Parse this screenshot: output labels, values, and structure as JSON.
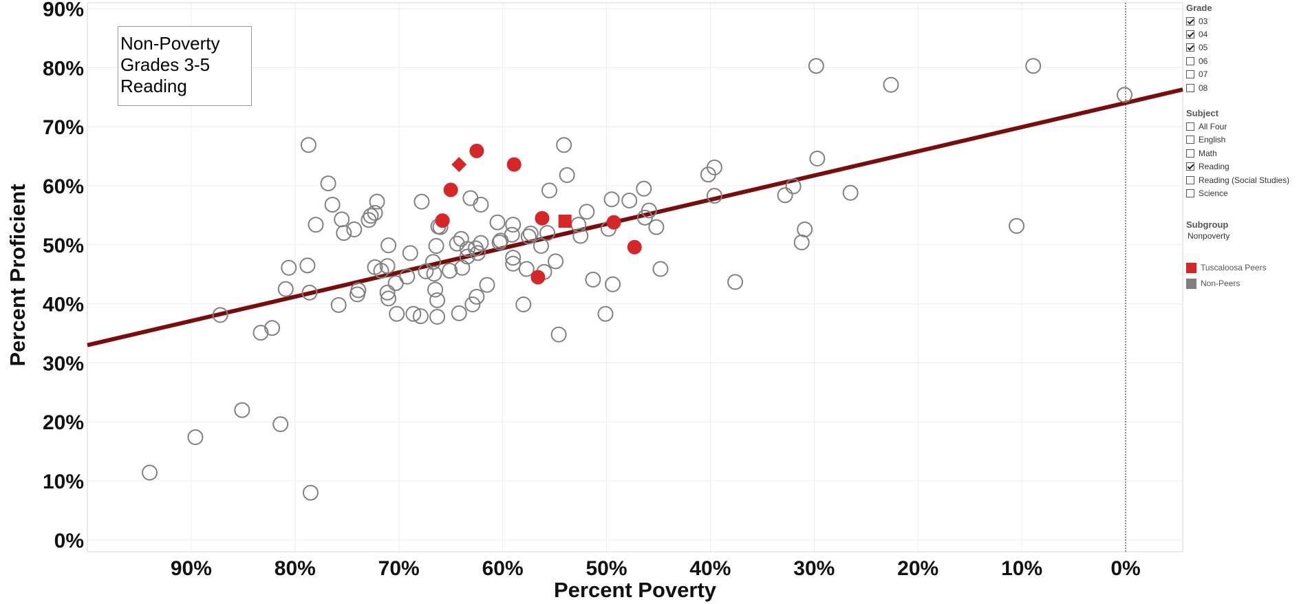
{
  "filters": {
    "grade": {
      "title": "Grade",
      "options": [
        {
          "label": "03",
          "checked": true
        },
        {
          "label": "04",
          "checked": true
        },
        {
          "label": "05",
          "checked": true
        },
        {
          "label": "06",
          "checked": false
        },
        {
          "label": "07",
          "checked": false
        },
        {
          "label": "08",
          "checked": false
        }
      ]
    },
    "subject": {
      "title": "Subject",
      "options": [
        {
          "label": "All Four",
          "checked": false
        },
        {
          "label": "English",
          "checked": false
        },
        {
          "label": "Math",
          "checked": false
        },
        {
          "label": "Reading",
          "checked": true
        },
        {
          "label": "Reading (Social Studies)",
          "checked": false
        },
        {
          "label": "Science",
          "checked": false
        }
      ]
    },
    "subgroup": {
      "title": "Subgroup",
      "value": "Nonpoverty"
    }
  },
  "legend": [
    {
      "label": "Tuscaloosa Peers",
      "color": "#d62728"
    },
    {
      "label": "Non-Peers",
      "color": "#808080"
    }
  ],
  "annotation": {
    "lines": [
      "Non-Poverty",
      "Grades 3-5",
      "Reading"
    ]
  },
  "chart_data": {
    "type": "scatter",
    "xlabel": "Percent Poverty",
    "ylabel": "Percent Proficient",
    "x_reversed": true,
    "xlim": [
      100,
      -5.5
    ],
    "ylim": [
      -2,
      91
    ],
    "x_ticks": [
      {
        "value": 90,
        "label": "90%"
      },
      {
        "value": 80,
        "label": "80%"
      },
      {
        "value": 70,
        "label": "70%"
      },
      {
        "value": 60,
        "label": "60%"
      },
      {
        "value": 50,
        "label": "50%"
      },
      {
        "value": 40,
        "label": "40%"
      },
      {
        "value": 30,
        "label": "30%"
      },
      {
        "value": 20,
        "label": "20%"
      },
      {
        "value": 10,
        "label": "10%"
      },
      {
        "value": 0,
        "label": "0%"
      }
    ],
    "y_ticks": [
      {
        "value": 0,
        "label": "0%"
      },
      {
        "value": 10,
        "label": "10%"
      },
      {
        "value": 20,
        "label": "20%"
      },
      {
        "value": 30,
        "label": "30%"
      },
      {
        "value": 40,
        "label": "40%"
      },
      {
        "value": 50,
        "label": "50%"
      },
      {
        "value": 60,
        "label": "60%"
      },
      {
        "value": 70,
        "label": "70%"
      },
      {
        "value": 80,
        "label": "80%"
      },
      {
        "value": 90,
        "label": "90%"
      }
    ],
    "grid": true,
    "reference_line_x": 0,
    "trend_line": {
      "color": "#7b0c0c",
      "points": [
        [
          100,
          33
        ],
        [
          -5.5,
          76.3
        ]
      ]
    },
    "series": [
      {
        "name": "Non-Peers",
        "color": "#808080",
        "marker": "open-circle",
        "points": [
          [
            94.0,
            11.4
          ],
          [
            89.6,
            17.4
          ],
          [
            85.1,
            22.0
          ],
          [
            81.4,
            19.6
          ],
          [
            78.5,
            8.0
          ],
          [
            87.2,
            38.1
          ],
          [
            83.3,
            35.1
          ],
          [
            82.2,
            35.9
          ],
          [
            80.9,
            42.5
          ],
          [
            80.6,
            46.1
          ],
          [
            78.8,
            46.5
          ],
          [
            78.6,
            41.9
          ],
          [
            78.7,
            66.9
          ],
          [
            78.0,
            53.4
          ],
          [
            76.8,
            60.4
          ],
          [
            76.4,
            56.8
          ],
          [
            75.8,
            39.8
          ],
          [
            75.5,
            54.3
          ],
          [
            75.3,
            52.0
          ],
          [
            74.3,
            52.6
          ],
          [
            74.0,
            41.6
          ],
          [
            73.9,
            42.3
          ],
          [
            72.9,
            54.2
          ],
          [
            72.7,
            54.9
          ],
          [
            72.3,
            55.4
          ],
          [
            72.1,
            57.3
          ],
          [
            72.3,
            46.2
          ],
          [
            71.7,
            45.6
          ],
          [
            71.1,
            46.4
          ],
          [
            71.0,
            49.9
          ],
          [
            71.1,
            41.9
          ],
          [
            71.0,
            40.9
          ],
          [
            70.3,
            43.5
          ],
          [
            70.2,
            38.3
          ],
          [
            69.2,
            44.6
          ],
          [
            68.9,
            48.6
          ],
          [
            68.6,
            38.3
          ],
          [
            67.9,
            37.9
          ],
          [
            67.8,
            57.3
          ],
          [
            67.4,
            45.5
          ],
          [
            66.7,
            47.1
          ],
          [
            66.6,
            45.1
          ],
          [
            66.5,
            42.4
          ],
          [
            66.3,
            40.6
          ],
          [
            66.4,
            49.8
          ],
          [
            66.2,
            53.1
          ],
          [
            66.0,
            53.0
          ],
          [
            66.3,
            37.8
          ],
          [
            65.1,
            45.6
          ],
          [
            64.4,
            50.2
          ],
          [
            64.2,
            38.4
          ],
          [
            64.0,
            51.0
          ],
          [
            63.9,
            46.1
          ],
          [
            63.4,
            49.3
          ],
          [
            63.4,
            48.0
          ],
          [
            63.1,
            57.9
          ],
          [
            62.9,
            39.9
          ],
          [
            62.6,
            49.4
          ],
          [
            62.5,
            41.2
          ],
          [
            62.4,
            48.6
          ],
          [
            62.1,
            56.8
          ],
          [
            62.1,
            50.3
          ],
          [
            61.5,
            43.2
          ],
          [
            60.5,
            53.8
          ],
          [
            60.3,
            50.4
          ],
          [
            60.2,
            50.7
          ],
          [
            59.1,
            51.7
          ],
          [
            59.0,
            46.8
          ],
          [
            59.0,
            47.8
          ],
          [
            59.0,
            53.4
          ],
          [
            58.0,
            39.9
          ],
          [
            57.7,
            45.9
          ],
          [
            57.5,
            51.4
          ],
          [
            57.3,
            51.9
          ],
          [
            56.3,
            49.8
          ],
          [
            56.0,
            45.4
          ],
          [
            55.7,
            52.0
          ],
          [
            55.5,
            59.2
          ],
          [
            54.9,
            47.2
          ],
          [
            54.6,
            34.8
          ],
          [
            54.1,
            66.9
          ],
          [
            53.8,
            61.8
          ],
          [
            52.7,
            53.4
          ],
          [
            52.5,
            51.5
          ],
          [
            51.9,
            55.6
          ],
          [
            51.3,
            44.1
          ],
          [
            50.1,
            38.3
          ],
          [
            49.8,
            52.7
          ],
          [
            49.5,
            57.7
          ],
          [
            49.4,
            43.3
          ],
          [
            47.8,
            57.5
          ],
          [
            46.4,
            59.5
          ],
          [
            46.3,
            54.6
          ],
          [
            45.9,
            55.8
          ],
          [
            45.2,
            53.0
          ],
          [
            44.8,
            45.9
          ],
          [
            40.2,
            61.9
          ],
          [
            39.6,
            63.1
          ],
          [
            39.6,
            58.3
          ],
          [
            37.6,
            43.7
          ],
          [
            32.8,
            58.4
          ],
          [
            32.0,
            59.9
          ],
          [
            31.2,
            50.4
          ],
          [
            30.9,
            52.6
          ],
          [
            29.8,
            80.3
          ],
          [
            29.7,
            64.6
          ],
          [
            26.5,
            58.8
          ],
          [
            22.6,
            77.1
          ],
          [
            10.5,
            53.2
          ],
          [
            8.9,
            80.3
          ],
          [
            0.1,
            75.4
          ]
        ]
      },
      {
        "name": "Tuscaloosa Peers",
        "color": "#d62728",
        "marker": "filled",
        "points": [
          {
            "x": 65.8,
            "y": 54.1,
            "shape": "circle"
          },
          {
            "x": 65.0,
            "y": 59.3,
            "shape": "circle"
          },
          {
            "x": 64.2,
            "y": 63.6,
            "shape": "diamond"
          },
          {
            "x": 62.5,
            "y": 65.9,
            "shape": "circle"
          },
          {
            "x": 58.9,
            "y": 63.6,
            "shape": "circle"
          },
          {
            "x": 56.6,
            "y": 44.5,
            "shape": "circle"
          },
          {
            "x": 56.2,
            "y": 54.5,
            "shape": "circle"
          },
          {
            "x": 54.0,
            "y": 54.0,
            "shape": "square"
          },
          {
            "x": 49.3,
            "y": 53.8,
            "shape": "circle"
          },
          {
            "x": 47.3,
            "y": 49.6,
            "shape": "circle"
          }
        ]
      }
    ]
  }
}
